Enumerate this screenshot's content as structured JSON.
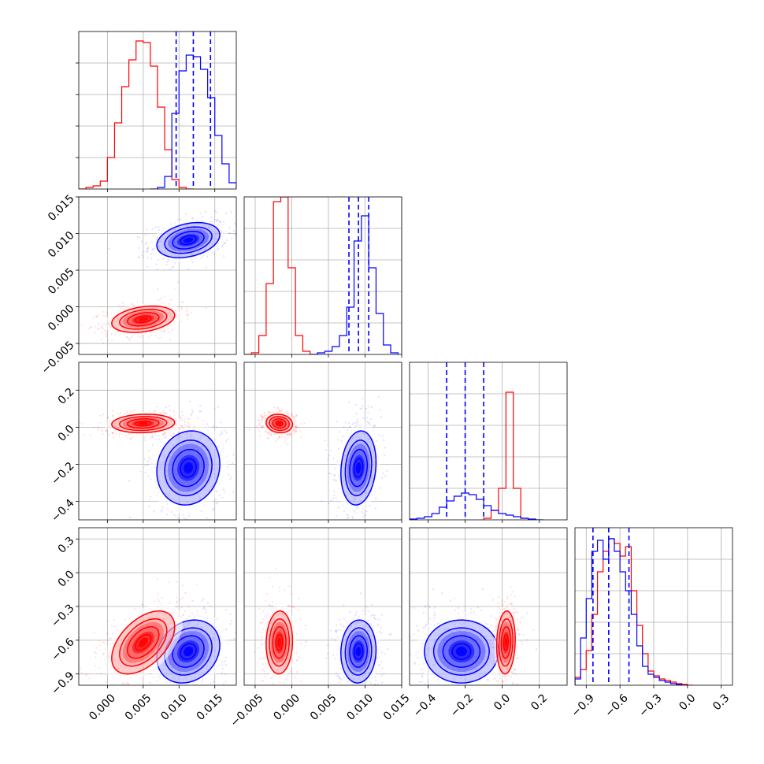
{
  "chart_data": {
    "type": "corner",
    "grid": true,
    "colors": {
      "red": "#ff0000",
      "blue": "#0000ff",
      "grid": "#b0b0b0"
    },
    "params": [
      {
        "range": [
          -0.004,
          0.018
        ],
        "ticks": [
          0.0,
          0.005,
          0.01,
          0.015
        ],
        "tick_labels": [
          "0.000",
          "0.005",
          "0.010",
          "0.015"
        ]
      },
      {
        "range": [
          -0.0065,
          0.015
        ],
        "ticks": [
          -0.005,
          0.0,
          0.005,
          0.01,
          0.015
        ],
        "tick_labels": [
          "−0.005",
          "0.000",
          "0.005",
          "0.010",
          "0.015"
        ]
      },
      {
        "range": [
          -0.5,
          0.35
        ],
        "ticks": [
          -0.4,
          -0.2,
          0.0,
          0.2
        ],
        "tick_labels": [
          "−0.4",
          "−0.2",
          "0.0",
          "0.2"
        ]
      },
      {
        "range": [
          -1.0,
          0.4
        ],
        "ticks": [
          -0.9,
          -0.6,
          -0.3,
          0.0,
          0.3
        ],
        "tick_labels": [
          "−0.9",
          "−0.6",
          "−0.3",
          "0.0",
          "0.3"
        ]
      }
    ],
    "marginals": [
      {
        "hist_ymax": 1.0,
        "red": {
          "bins": [
            -0.004,
            -0.003,
            -0.002,
            -0.001,
            0.0,
            0.001,
            0.002,
            0.003,
            0.004,
            0.005,
            0.006,
            0.007,
            0.008,
            0.009,
            0.01,
            0.011,
            0.012
          ],
          "heights": [
            0.0,
            0.01,
            0.02,
            0.05,
            0.2,
            0.42,
            0.65,
            0.82,
            0.94,
            0.93,
            0.78,
            0.52,
            0.25,
            0.06,
            0.01,
            0.0
          ]
        },
        "blue": {
          "bins": [
            0.006,
            0.007,
            0.008,
            0.009,
            0.01,
            0.011,
            0.012,
            0.013,
            0.014,
            0.015,
            0.016,
            0.017,
            0.018
          ],
          "heights": [
            0.0,
            0.01,
            0.08,
            0.48,
            0.75,
            0.85,
            0.84,
            0.76,
            0.58,
            0.34,
            0.16,
            0.04
          ]
        },
        "quantiles": [
          0.0096,
          0.012,
          0.0144
        ]
      },
      {
        "hist_ymax": 1.0,
        "red": {
          "bins": [
            -0.0065,
            -0.0055,
            -0.0045,
            -0.0035,
            -0.0025,
            -0.0015,
            -0.0005,
            0.0005,
            0.0015,
            0.0025,
            0.0035
          ],
          "heights": [
            0.0,
            0.01,
            0.12,
            0.45,
            0.97,
            1.0,
            0.55,
            0.12,
            0.02,
            0.0
          ]
        },
        "blue": {
          "bins": [
            0.0025,
            0.0035,
            0.0045,
            0.0055,
            0.0065,
            0.0075,
            0.0085,
            0.0095,
            0.0105,
            0.0115,
            0.0125,
            0.0135,
            0.0145
          ],
          "heights": [
            0.0,
            0.01,
            0.02,
            0.05,
            0.12,
            0.3,
            0.72,
            0.88,
            0.55,
            0.26,
            0.06,
            0.01
          ]
        },
        "quantiles": [
          0.0078,
          0.0091,
          0.0105
        ]
      },
      {
        "hist_ymax": 1.0,
        "red": {
          "bins": [
            -0.1,
            -0.06,
            -0.02,
            0.02,
            0.06,
            0.1,
            0.14
          ],
          "heights": [
            0.01,
            0.06,
            0.2,
            0.81,
            0.2,
            0.01
          ]
        },
        "blue": {
          "bins": [
            -0.5,
            -0.46,
            -0.42,
            -0.38,
            -0.34,
            -0.3,
            -0.26,
            -0.22,
            -0.18,
            -0.14,
            -0.1,
            -0.06,
            -0.02,
            0.02,
            0.06,
            0.1,
            0.14,
            0.18,
            0.22
          ],
          "heights": [
            0.005,
            0.01,
            0.02,
            0.04,
            0.08,
            0.12,
            0.15,
            0.17,
            0.16,
            0.13,
            0.09,
            0.06,
            0.04,
            0.03,
            0.02,
            0.01,
            0.005,
            0.0
          ]
        },
        "quantiles": [
          -0.3,
          -0.2,
          -0.1
        ]
      },
      {
        "hist_ymax": 1.0,
        "red": {
          "bins": [
            -1.0,
            -0.95,
            -0.9,
            -0.85,
            -0.8,
            -0.75,
            -0.7,
            -0.65,
            -0.6,
            -0.55,
            -0.5,
            -0.45,
            -0.4,
            -0.35,
            -0.3,
            -0.25,
            -0.2,
            -0.15,
            -0.1,
            -0.05,
            0.0,
            0.05
          ],
          "heights": [
            0.05,
            0.1,
            0.22,
            0.45,
            0.72,
            0.85,
            0.93,
            0.9,
            0.82,
            0.88,
            0.6,
            0.38,
            0.2,
            0.09,
            0.06,
            0.04,
            0.03,
            0.02,
            0.01,
            0.005,
            0.0
          ]
        },
        "blue": {
          "bins": [
            -1.0,
            -0.95,
            -0.9,
            -0.85,
            -0.8,
            -0.75,
            -0.7,
            -0.65,
            -0.6,
            -0.55,
            -0.5,
            -0.45,
            -0.4,
            -0.35,
            -0.3,
            -0.25,
            -0.2,
            -0.15,
            -0.1,
            -0.05,
            0.0
          ],
          "heights": [
            0.04,
            0.3,
            0.55,
            0.85,
            0.92,
            0.8,
            0.93,
            0.85,
            0.72,
            0.6,
            0.45,
            0.25,
            0.12,
            0.07,
            0.05,
            0.03,
            0.02,
            0.01,
            0.005,
            0.0
          ]
        },
        "quantiles": [
          -0.84,
          -0.7,
          -0.52
        ]
      }
    ],
    "joint": [
      {
        "row": 1,
        "col": 0,
        "red": {
          "mean": [
            0.005,
            -0.0017
          ],
          "sd": [
            0.0022,
            0.0009
          ],
          "corr": 0.3
        },
        "blue": {
          "mean": [
            0.0113,
            0.0091
          ],
          "sd": [
            0.0022,
            0.0012
          ],
          "corr": 0.3
        }
      },
      {
        "row": 2,
        "col": 0,
        "red": {
          "mean": [
            0.005,
            0.02
          ],
          "sd": [
            0.0022,
            0.025
          ],
          "corr": 0.1
        },
        "blue": {
          "mean": [
            0.0113,
            -0.22
          ],
          "sd": [
            0.0022,
            0.1
          ],
          "corr": 0.1
        }
      },
      {
        "row": 2,
        "col": 1,
        "red": {
          "mean": [
            -0.0017,
            0.02
          ],
          "sd": [
            0.0009,
            0.025
          ],
          "corr": -0.1
        },
        "blue": {
          "mean": [
            0.0091,
            -0.22
          ],
          "sd": [
            0.0012,
            0.1
          ],
          "corr": 0.15
        }
      },
      {
        "row": 3,
        "col": 0,
        "red": {
          "mean": [
            0.005,
            -0.62
          ],
          "sd": [
            0.0022,
            0.14
          ],
          "corr": 0.5
        },
        "blue": {
          "mean": [
            0.0113,
            -0.7
          ],
          "sd": [
            0.0022,
            0.14
          ],
          "corr": 0.2
        }
      },
      {
        "row": 3,
        "col": 1,
        "red": {
          "mean": [
            -0.0017,
            -0.62
          ],
          "sd": [
            0.0009,
            0.14
          ],
          "corr": 0.05
        },
        "blue": {
          "mean": [
            0.0091,
            -0.7
          ],
          "sd": [
            0.0012,
            0.14
          ],
          "corr": 0.05
        }
      },
      {
        "row": 3,
        "col": 2,
        "red": {
          "mean": [
            0.02,
            -0.62
          ],
          "sd": [
            0.025,
            0.14
          ],
          "corr": 0.1
        },
        "blue": {
          "mean": [
            -0.22,
            -0.7
          ],
          "sd": [
            0.1,
            0.14
          ],
          "corr": 0.0
        }
      }
    ]
  }
}
